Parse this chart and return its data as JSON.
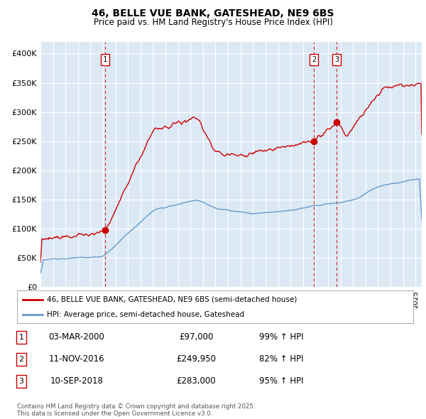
{
  "title_line1": "46, BELLE VUE BANK, GATESHEAD, NE9 6BS",
  "title_line2": "Price paid vs. HM Land Registry's House Price Index (HPI)",
  "ylim": [
    0,
    420000
  ],
  "yticks": [
    0,
    50000,
    100000,
    150000,
    200000,
    250000,
    300000,
    350000,
    400000
  ],
  "ytick_labels": [
    "£0",
    "£50K",
    "£100K",
    "£150K",
    "£200K",
    "£250K",
    "£300K",
    "£350K",
    "£400K"
  ],
  "plot_bg_color": "#dce9f5",
  "grid_color": "#ffffff",
  "red_line_color": "#cc0000",
  "blue_line_color": "#6699cc",
  "vline_color": "#cc0000",
  "sale1_date": "03-MAR-2000",
  "sale1_price": 97000,
  "sale1_hpi": "99% ↑ HPI",
  "sale1_x": 2000.17,
  "sale1_y": 97000,
  "sale2_date": "11-NOV-2016",
  "sale2_price": 249950,
  "sale2_hpi": "82% ↑ HPI",
  "sale2_x": 2016.86,
  "sale2_y": 249950,
  "sale3_date": "10-SEP-2018",
  "sale3_price": 283000,
  "sale3_hpi": "95% ↑ HPI",
  "sale3_x": 2018.69,
  "sale3_y": 283000,
  "legend_label_red": "46, BELLE VUE BANK, GATESHEAD, NE9 6BS (semi-detached house)",
  "legend_label_blue": "HPI: Average price, semi-detached house, Gateshead",
  "footer_text": "Contains HM Land Registry data © Crown copyright and database right 2025.\nThis data is licensed under the Open Government Licence v3.0.",
  "xmin": 1995.0,
  "xmax": 2025.5,
  "marker_size": 6
}
